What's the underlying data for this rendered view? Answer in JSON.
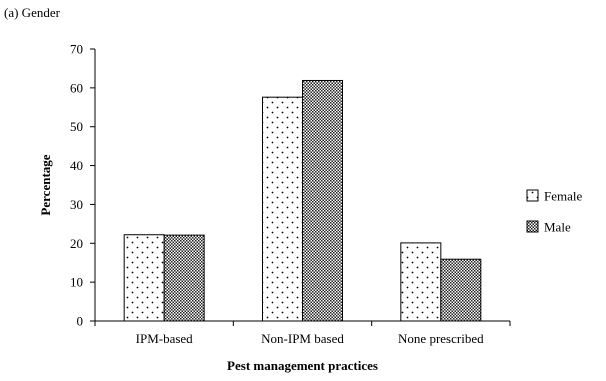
{
  "panel_label": "(a) Gender",
  "chart_data": {
    "type": "bar",
    "title": "",
    "xlabel": "Pest management practices",
    "ylabel": "Percentage",
    "categories": [
      "IPM-based",
      "Non-IPM based",
      "None prescribed"
    ],
    "series": [
      {
        "name": "Female",
        "values": [
          22.2,
          57.6,
          20.1
        ],
        "pattern": "dots"
      },
      {
        "name": "Male",
        "values": [
          22.1,
          61.9,
          15.9
        ],
        "pattern": "checker"
      }
    ],
    "ylim": [
      0,
      70
    ],
    "yticks": [
      0,
      10,
      20,
      30,
      40,
      50,
      60,
      70
    ],
    "grid": false,
    "legend_position": "right"
  }
}
